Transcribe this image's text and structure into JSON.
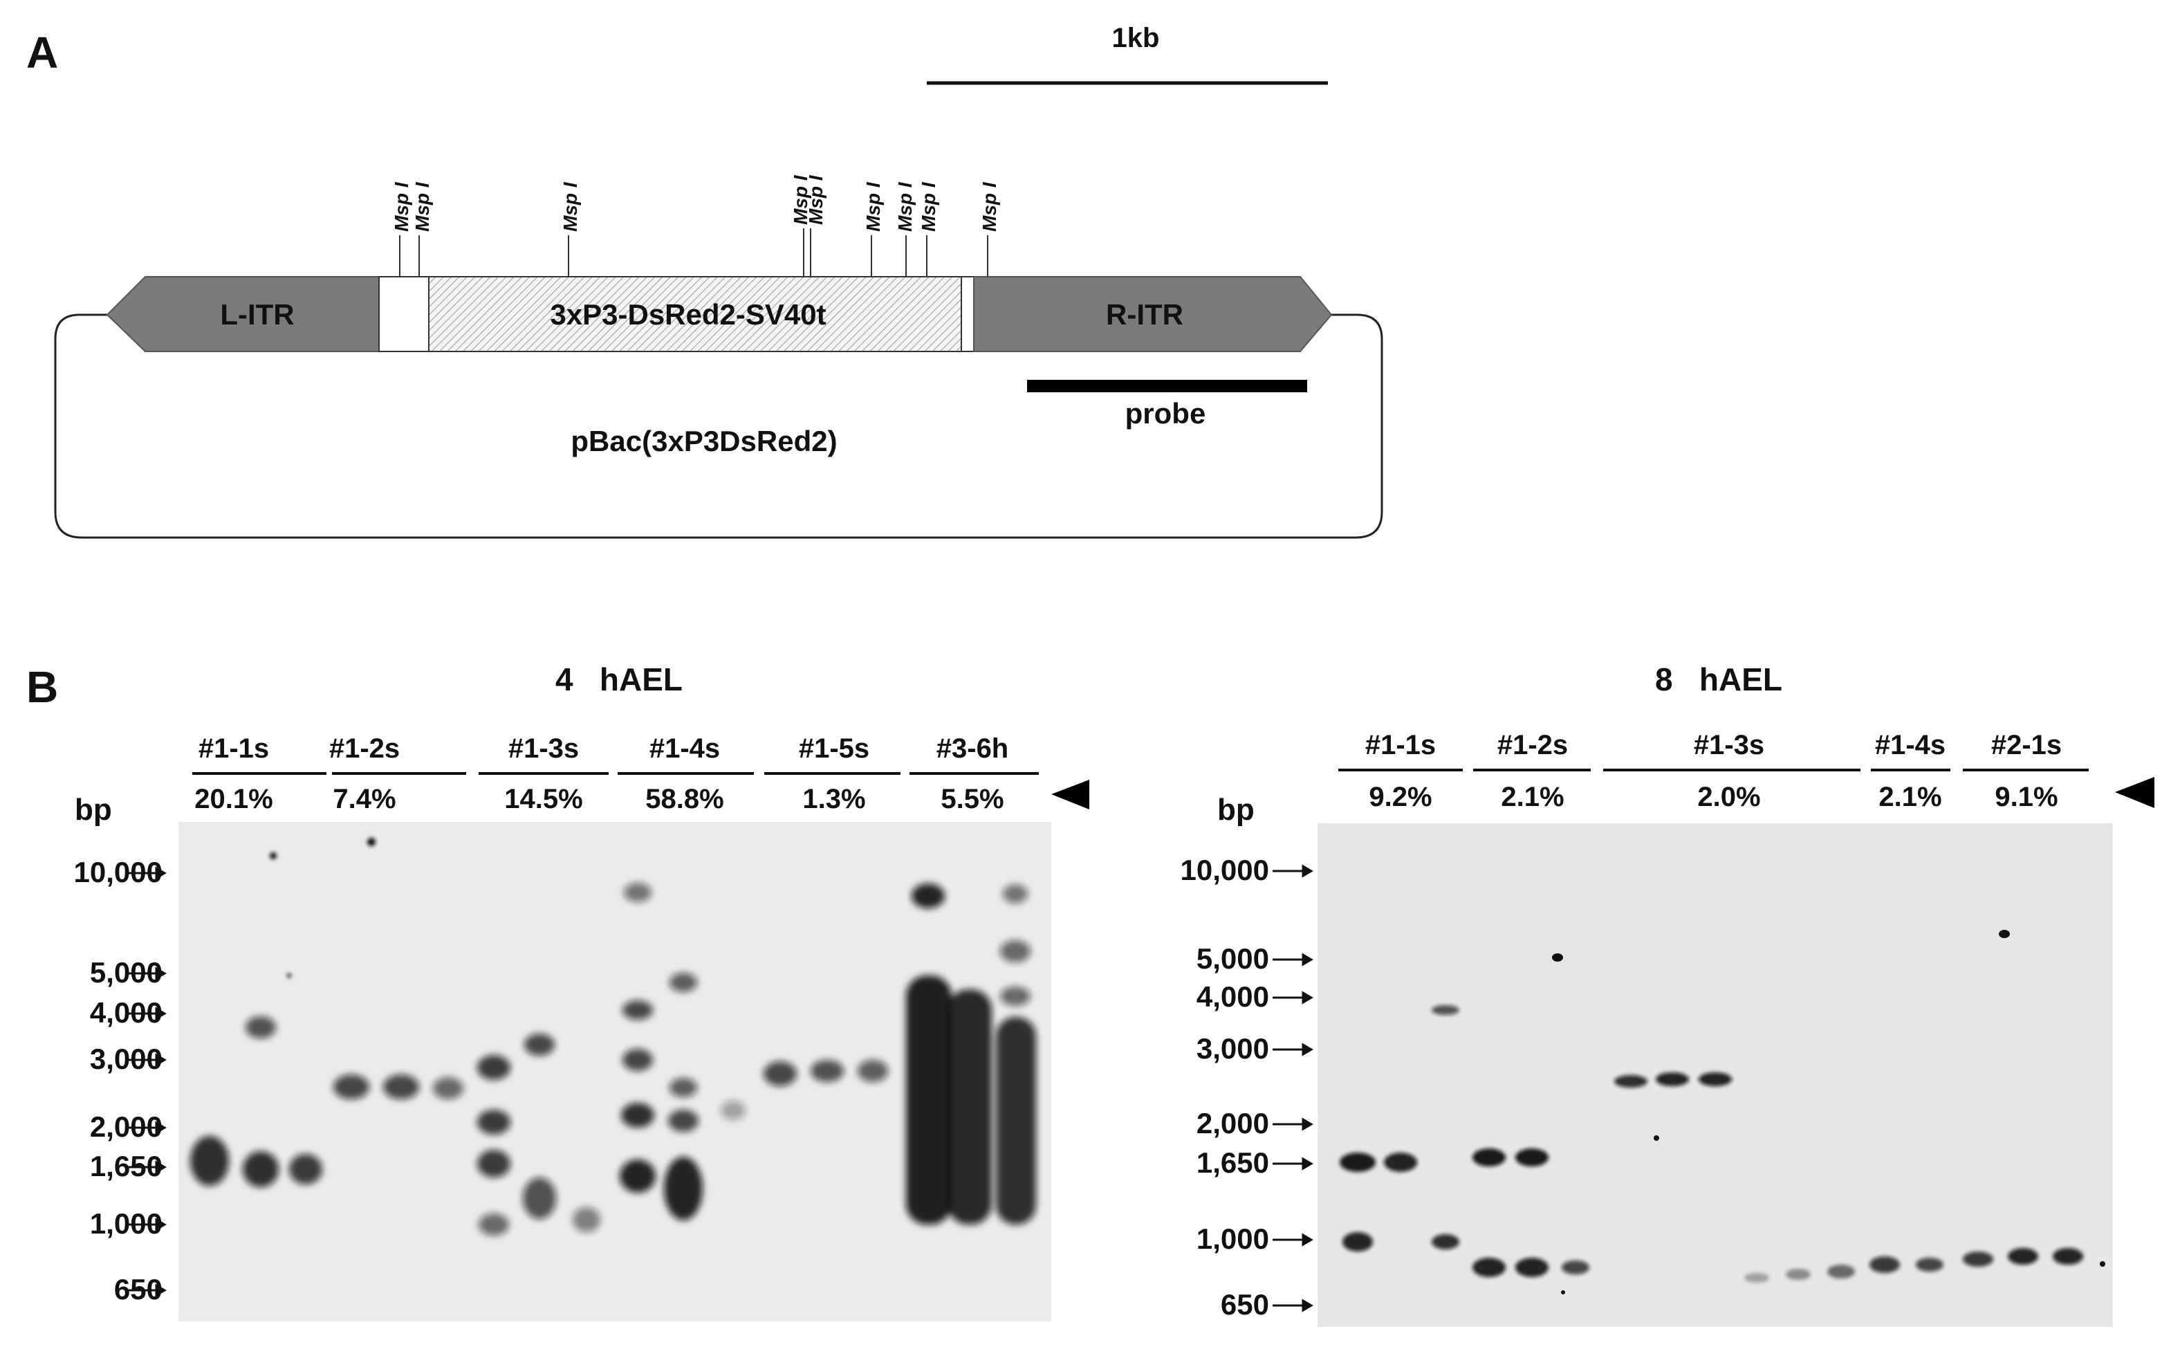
{
  "panelA": {
    "label": "A",
    "scale_label": "1kb",
    "left_itr": "L-ITR",
    "cassette": "3xP3-DsRed2-SV40t",
    "right_itr": "R-ITR",
    "probe": "probe",
    "plasmid": "pBac(3xP3DsRed2)",
    "msp_sites": [
      "Msp I",
      "Msp I",
      "Msp I",
      "Msp I",
      "Msp I",
      "Msp I",
      "Msp I",
      "Msp I",
      "Msp I"
    ]
  },
  "panelB": {
    "label": "B",
    "bp_label": "bp",
    "ladder": [
      "10,000",
      "5,000",
      "4,000",
      "3,000",
      "2,000",
      "1,650",
      "1,000",
      "650"
    ],
    "gel1": {
      "title": "4   hAEL",
      "groups": [
        {
          "name": "#1-1s",
          "pct": "20.1%"
        },
        {
          "name": "#1-2s",
          "pct": "7.4%"
        },
        {
          "name": "#1-3s",
          "pct": "14.5%"
        },
        {
          "name": "#1-4s",
          "pct": "58.8%"
        },
        {
          "name": "#1-5s",
          "pct": "1.3%"
        },
        {
          "name": "#3-6h",
          "pct": "5.5%"
        }
      ]
    },
    "gel2": {
      "title": "8   hAEL",
      "groups": [
        {
          "name": "#1-1s",
          "pct": "9.2%"
        },
        {
          "name": "#1-2s",
          "pct": "2.1%"
        },
        {
          "name": "#1-3s",
          "pct": "2.0%"
        },
        {
          "name": "#1-4s",
          "pct": "2.1%"
        },
        {
          "name": "#2-1s",
          "pct": "9.1%"
        }
      ]
    }
  }
}
